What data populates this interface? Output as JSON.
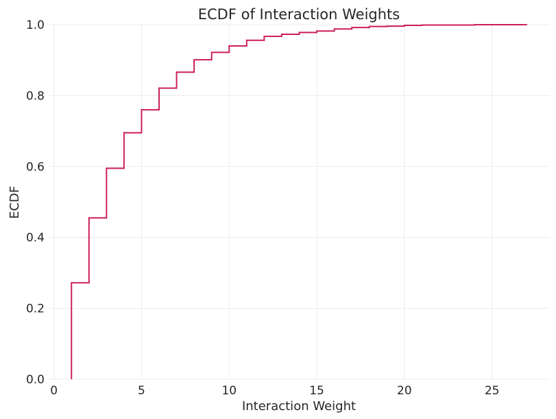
{
  "chart_data": {
    "type": "line",
    "subtype": "ecdf-step",
    "title": "ECDF of Interaction Weights",
    "xlabel": "Interaction Weight",
    "ylabel": "ECDF",
    "xlim": [
      -0.3,
      28.3
    ],
    "ylim": [
      0,
      1.0
    ],
    "grid": true,
    "x_ticks": [
      0,
      5,
      10,
      15,
      20,
      25
    ],
    "y_ticks": [
      0.0,
      0.2,
      0.4,
      0.6,
      0.8,
      1.0
    ],
    "x_tick_labels": [
      "0",
      "5",
      "10",
      "15",
      "20",
      "25"
    ],
    "y_tick_labels": [
      "0.0",
      "0.2",
      "0.4",
      "0.6",
      "0.8",
      "1.0"
    ],
    "color": "#cc1f54",
    "series": [
      {
        "x": [
          1,
          2,
          3,
          4,
          5,
          6,
          7,
          8,
          9,
          10,
          11,
          12,
          13,
          14,
          15,
          16,
          17,
          18,
          19,
          20,
          21,
          22,
          23,
          24,
          25,
          26,
          27
        ],
        "y": [
          0.272,
          0.455,
          0.595,
          0.695,
          0.76,
          0.821,
          0.866,
          0.901,
          0.922,
          0.94,
          0.956,
          0.967,
          0.973,
          0.978,
          0.982,
          0.988,
          0.992,
          0.995,
          0.996,
          0.998,
          0.999,
          0.999,
          0.999,
          1.0,
          1.0,
          1.0,
          1.0
        ]
      }
    ]
  }
}
